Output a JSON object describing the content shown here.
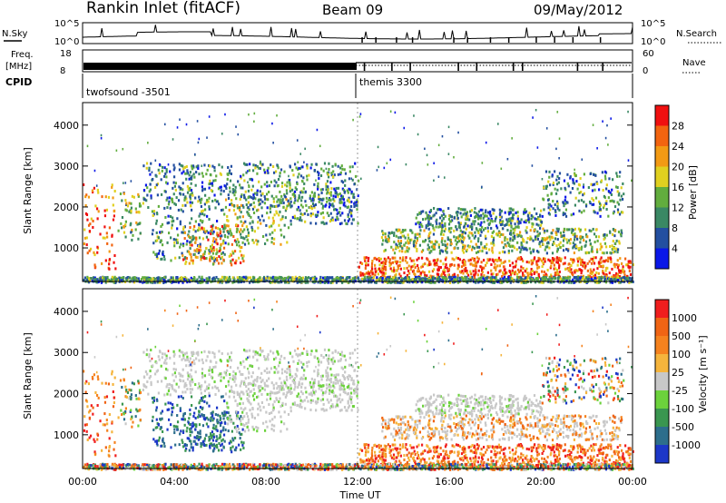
{
  "header": {
    "title": "Rankin Inlet (fitACF)",
    "beam": "Beam 09",
    "date": "09/May/2012"
  },
  "colors": {
    "background": "#ffffff",
    "axes": "#000000",
    "ground_scatter": "#c8c8c8"
  },
  "chart_data": [
    {
      "type": "line",
      "name": "noise",
      "left_label": "N.Sky",
      "right_label": "N.Search",
      "left_ticks": [
        "10^5",
        "10^0"
      ],
      "right_ticks": [
        "10^5",
        "10^0"
      ],
      "xlim": [
        0,
        24
      ]
    },
    {
      "type": "line",
      "name": "frequency-nave",
      "left_label_1": "Freq.",
      "left_label_2": "[MHz]",
      "right_label": "Nave",
      "left_ticks": [
        "18",
        "8"
      ],
      "right_ticks": [
        "60",
        "0"
      ],
      "xlim": [
        0,
        24
      ]
    },
    {
      "type": "table",
      "name": "cpid",
      "label": "CPID",
      "segments": [
        {
          "start": 0,
          "end": 12,
          "label": "twofsound -3501"
        },
        {
          "start": 12,
          "end": 24,
          "label": "themis 3300"
        }
      ]
    },
    {
      "type": "heatmap",
      "name": "power",
      "ylabel": "Slant Range [km]",
      "yticks": [
        1000,
        2000,
        3000,
        4000
      ],
      "ylim": [
        180,
        4550
      ],
      "xlim": [
        0,
        24
      ],
      "colorbar": {
        "label": "Power [dB]",
        "ticks": [
          "4",
          "8",
          "12",
          "16",
          "20",
          "24",
          "28"
        ],
        "colors": [
          "#0a17e8",
          "#234fa0",
          "#3a8864",
          "#62ad3e",
          "#e0d020",
          "#f29a14",
          "#f26410",
          "#f01010"
        ]
      }
    },
    {
      "type": "heatmap",
      "name": "velocity",
      "ylabel": "Slant Range [km]",
      "yticks": [
        1000,
        2000,
        3000,
        4000
      ],
      "ylim": [
        180,
        4550
      ],
      "xlim": [
        0,
        24
      ],
      "xlabel": "Time UT",
      "xticks": [
        "00:00",
        "04:00",
        "08:00",
        "12:00",
        "16:00",
        "20:00",
        "00:00"
      ],
      "colorbar": {
        "label": "Velocity [m s⁻¹]",
        "ticks": [
          "1000",
          "500",
          "100",
          "25",
          "-25",
          "-100",
          "-500",
          "-1000"
        ],
        "colors": [
          "#1c37c8",
          "#2d6e8c",
          "#3a9650",
          "#6cd23c",
          "#c8c8c8",
          "#f5b43c",
          "#f5821e",
          "#f06414",
          "#f01e1e"
        ]
      }
    }
  ]
}
